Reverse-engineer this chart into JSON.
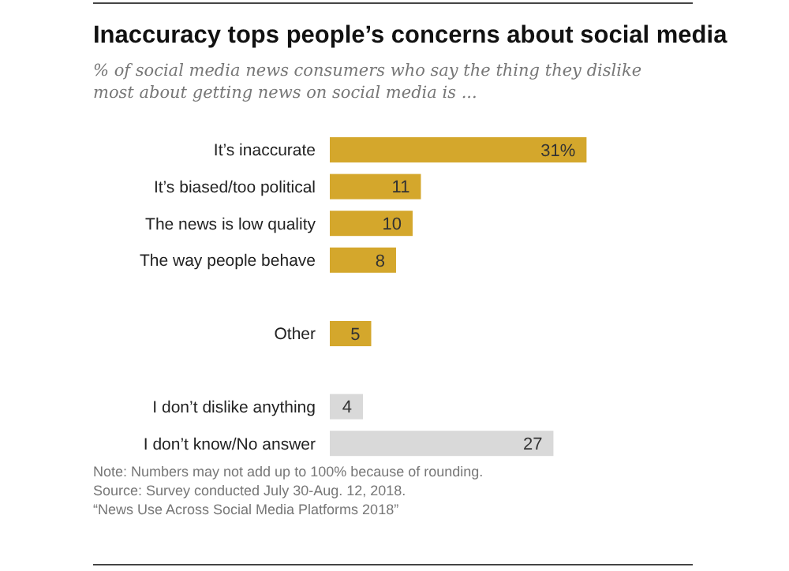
{
  "chart_data": {
    "type": "bar",
    "orientation": "horizontal",
    "title": "Inaccuracy tops people’s concerns about social media",
    "subtitle": "% of social media news consumers who say the thing they dislike most about getting news on social media is ...",
    "categories": [
      "It’s inaccurate",
      "It’s biased/too political",
      "The news is low quality",
      "The way people behave",
      null,
      "Other",
      "I don’t dislike anything",
      "I don’t know/No answer"
    ],
    "values": [
      31,
      11,
      10,
      8,
      null,
      5,
      4,
      27
    ],
    "value_labels": [
      "31%",
      "11",
      "10",
      "8",
      null,
      "5",
      "4",
      "27"
    ],
    "colors": [
      "#d4a72c",
      "#d4a72c",
      "#d4a72c",
      "#d4a72c",
      "#d4a72c",
      "#d4a72c",
      "#d9d9d9",
      "#d9d9d9"
    ],
    "annotations": [
      "Note: Numbers may not add up to 100% because of rounding.",
      "Source: Survey conducted July 30-Aug. 12, 2018.",
      "“News Use Across Social Media Platforms 2018”"
    ]
  }
}
